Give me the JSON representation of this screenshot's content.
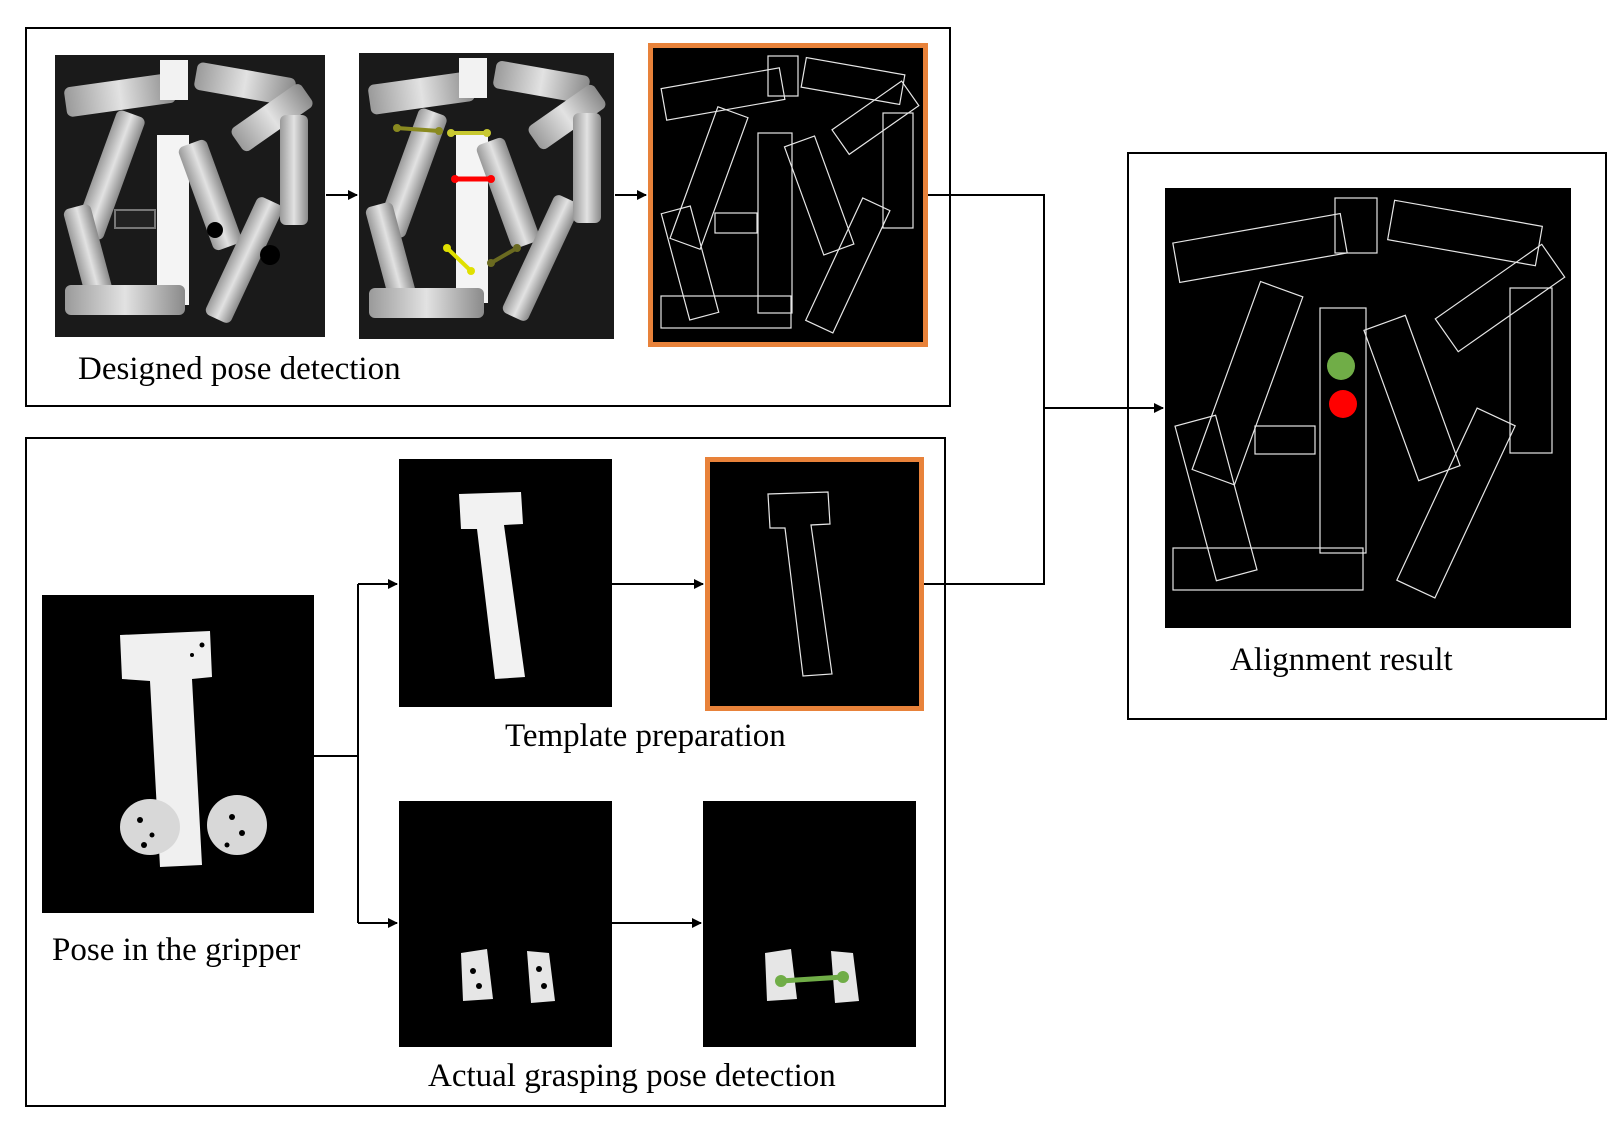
{
  "captions": {
    "designed": "Designed pose detection",
    "template": "Template preparation",
    "gripper": "Pose in the gripper",
    "actual": "Actual grasping pose detection",
    "alignment": "Alignment result"
  },
  "colors": {
    "highlight_border": "#e8823a",
    "marker_green": "#70ad47",
    "marker_red": "#ff0000",
    "grasp_yellow": "#d6d600",
    "grasp_olive": "#8a8a20",
    "grasp_red": "#ff0000"
  },
  "icons": {
    "arrow": "arrowhead"
  }
}
